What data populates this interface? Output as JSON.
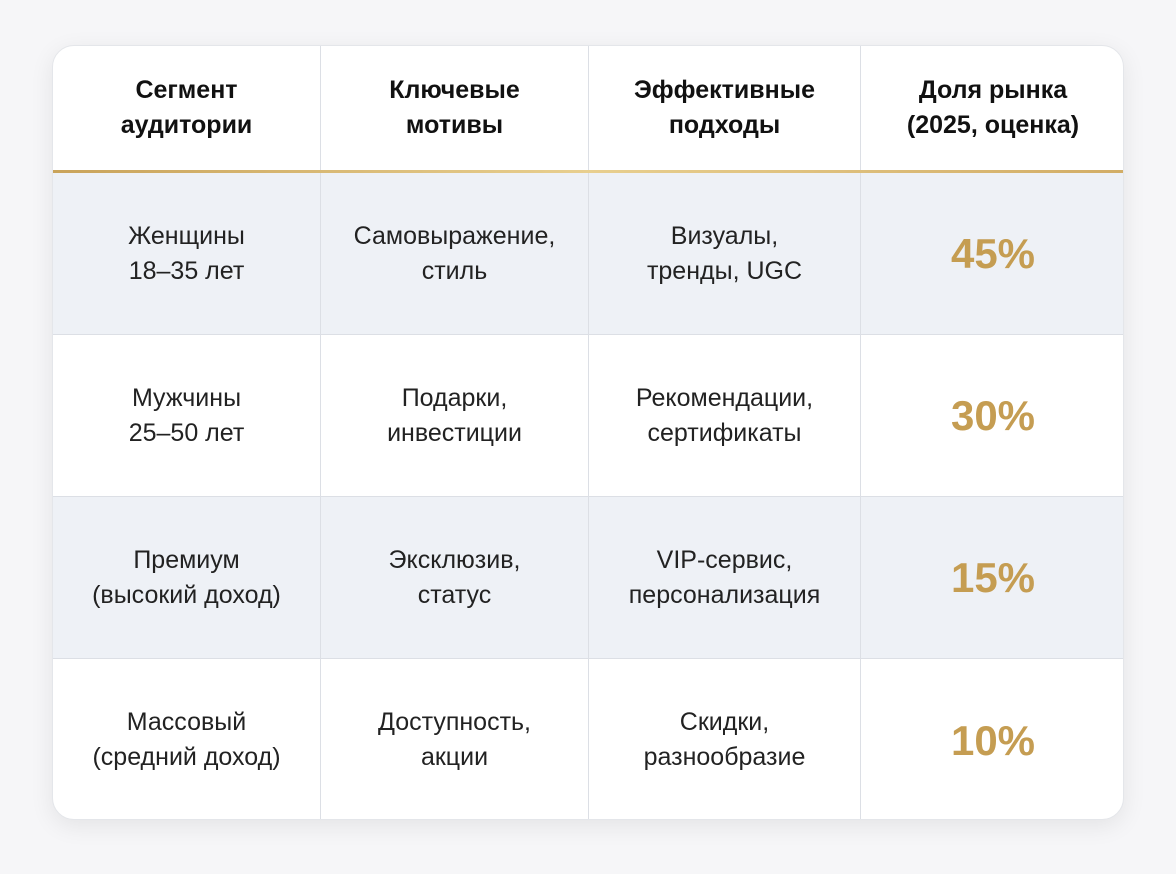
{
  "table": {
    "header": [
      "Сегмент\nаудитории",
      "Ключевые\nмотивы",
      "Эффективные\nподходы",
      "Доля рынка\n(2025, оценка)"
    ],
    "rows": [
      [
        "Женщины\n18–35 лет",
        "Самовыражение,\nстиль",
        "Визуалы,\nтренды, UGC",
        "45%"
      ],
      [
        "Мужчины\n25–50 лет",
        "Подарки,\nинвестиции",
        "Рекомендации,\nсертификаты",
        "30%"
      ],
      [
        "Премиум\n(высокий доход)",
        "Эксклюзив,\nстатус",
        "VIP-сервис,\nперсонализация",
        "15%"
      ],
      [
        "Массовый\n(средний доход)",
        "Доступность,\nакции",
        "Скидки,\nразнообразие",
        "10%"
      ]
    ]
  }
}
